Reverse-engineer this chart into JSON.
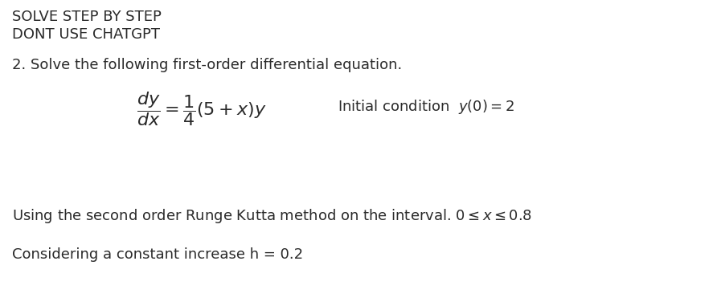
{
  "bg_color": "#ffffff",
  "text_color": "#2a2a2a",
  "line1": "SOLVE STEP BY STEP",
  "line2": "DONT USE CHATGPT",
  "line3": "2. Solve the following first-order differential equation.",
  "eq_text": "$\\dfrac{dy}{dx} = \\dfrac{1}{4}(5+x)y$",
  "ic_text": "Initial condition  $y(0) = 2$",
  "line6": "Using the second order Runge Kutta method on the interval. $0 \\leq x \\leq 0.8$",
  "line7": "Considering a constant increase h = 0.2",
  "fontsize_header": 13,
  "fontsize_body": 13,
  "fontsize_eq": 16
}
